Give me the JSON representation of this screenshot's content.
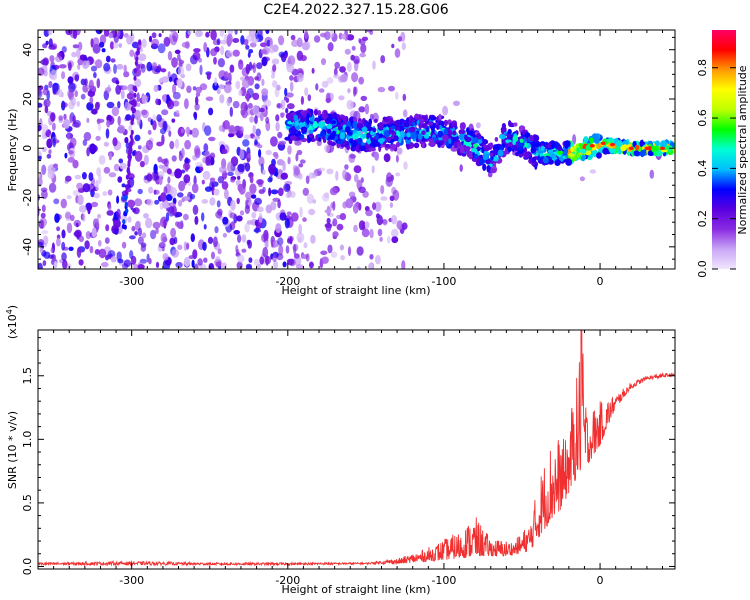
{
  "title": "C2E4.2022.327.15.28.G06",
  "chart_data": [
    {
      "type": "heatmap",
      "xlabel": "Height of straight line (km)",
      "ylabel": "Frequency (Hz)",
      "xlim": [
        -360,
        48
      ],
      "ylim": [
        -49,
        48
      ],
      "xticks": [
        -300,
        -200,
        -100,
        0
      ],
      "yticks": [
        -40,
        -20,
        0,
        20,
        40
      ],
      "colorbar": {
        "label": "Normalized spectral amplitude",
        "range": [
          0.0,
          0.95
        ],
        "ticks": [
          "0.0",
          "0.2",
          "0.4",
          "0.6",
          "0.8"
        ],
        "colormap": [
          "#f2e6ff",
          "#c9a6f5",
          "#8a2be2",
          "#5a00e0",
          "#0000ff",
          "#00bfff",
          "#00ffd5",
          "#00ff00",
          "#bfff00",
          "#ffff00",
          "#ff9900",
          "#ff0000",
          "#ff0066"
        ]
      },
      "features": {
        "trace_center_freq": [
          [
            -190,
            9
          ],
          [
            -180,
            9
          ],
          [
            -160,
            6
          ],
          [
            -150,
            5
          ],
          [
            -140,
            6
          ],
          [
            -130,
            6
          ],
          [
            -120,
            7
          ],
          [
            -110,
            7
          ],
          [
            -100,
            7
          ],
          [
            -90,
            4
          ],
          [
            -80,
            1
          ],
          [
            -70,
            -5
          ],
          [
            -60,
            5
          ],
          [
            -50,
            3
          ],
          [
            -40,
            -2
          ],
          [
            -30,
            -2
          ],
          [
            -20,
            -2
          ],
          [
            -10,
            0
          ],
          [
            0,
            1
          ],
          [
            10,
            1
          ],
          [
            20,
            0
          ],
          [
            30,
            0
          ],
          [
            40,
            0
          ],
          [
            48,
            0
          ]
        ]
      }
    },
    {
      "type": "line",
      "xlabel": "Height of straight line (km)",
      "ylabel": "SNR (10 * v/v)",
      "scale_label": "(x10",
      "scale_exp": "4",
      "scale_close": ")",
      "xlim": [
        -360,
        48
      ],
      "ylim": [
        -0.02,
        1.86
      ],
      "xticks": [
        -300,
        -200,
        -100,
        0
      ],
      "yticks": [
        "0.0",
        "0.5",
        "1.0",
        "1.5"
      ],
      "color": "#f03030",
      "envelope": [
        [
          -360,
          0.03
        ],
        [
          -300,
          0.04
        ],
        [
          -250,
          0.03
        ],
        [
          -200,
          0.03
        ],
        [
          -150,
          0.03
        ],
        [
          -130,
          0.06
        ],
        [
          -110,
          0.15
        ],
        [
          -90,
          0.28
        ],
        [
          -80,
          0.4
        ],
        [
          -70,
          0.22
        ],
        [
          -55,
          0.2
        ],
        [
          -45,
          0.35
        ],
        [
          -38,
          0.75
        ],
        [
          -30,
          1.05
        ],
        [
          -22,
          1.0
        ],
        [
          -15,
          1.5
        ],
        [
          -12,
          1.87
        ],
        [
          -8,
          1.2
        ],
        [
          -5,
          1.25
        ],
        [
          0,
          1.3
        ],
        [
          10,
          1.35
        ],
        [
          20,
          1.45
        ],
        [
          30,
          1.5
        ],
        [
          40,
          1.52
        ],
        [
          48,
          1.52
        ]
      ],
      "baseline": [
        [
          -360,
          0.01
        ],
        [
          -200,
          0.01
        ],
        [
          -130,
          0.02
        ],
        [
          -100,
          0.05
        ],
        [
          -80,
          0.08
        ],
        [
          -60,
          0.08
        ],
        [
          -45,
          0.12
        ],
        [
          -35,
          0.3
        ],
        [
          -25,
          0.45
        ],
        [
          -15,
          0.7
        ],
        [
          -8,
          0.8
        ],
        [
          0,
          0.95
        ],
        [
          10,
          1.25
        ],
        [
          20,
          1.4
        ],
        [
          30,
          1.47
        ],
        [
          48,
          1.5
        ]
      ]
    }
  ]
}
